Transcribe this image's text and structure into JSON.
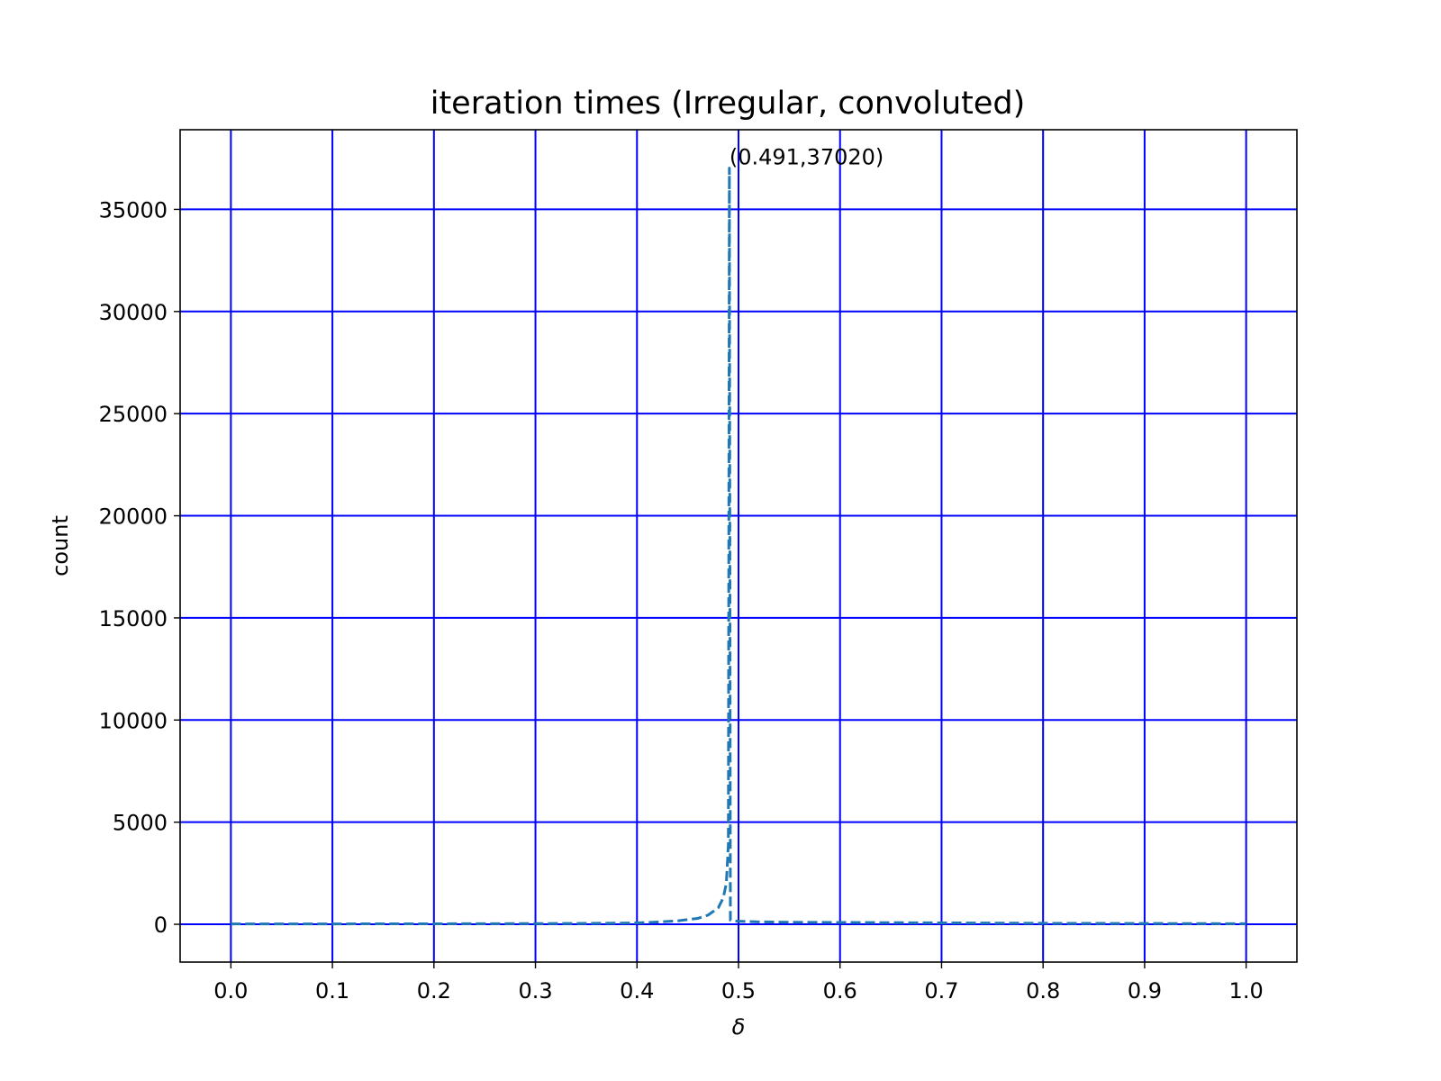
{
  "chart_data": {
    "type": "line",
    "title": "iteration times (Irregular, convoluted)",
    "xlabel": "δ",
    "ylabel": "count",
    "xlim": [
      -0.05,
      1.05
    ],
    "ylim": [
      -1850,
      38900
    ],
    "xticks": [
      0.0,
      0.1,
      0.2,
      0.3,
      0.4,
      0.5,
      0.6,
      0.7,
      0.8,
      0.9,
      1.0
    ],
    "xtick_labels": [
      "0.0",
      "0.1",
      "0.2",
      "0.3",
      "0.4",
      "0.5",
      "0.6",
      "0.7",
      "0.8",
      "0.9",
      "1.0"
    ],
    "yticks": [
      0,
      5000,
      10000,
      15000,
      20000,
      25000,
      30000,
      35000
    ],
    "ytick_labels": [
      "0",
      "5000",
      "10000",
      "15000",
      "20000",
      "25000",
      "30000",
      "35000"
    ],
    "grid": true,
    "grid_color": "#0000ff",
    "line_color": "#1f77b4",
    "line_style": "dashed",
    "series": [
      {
        "x": [
          0.0,
          0.05,
          0.1,
          0.15,
          0.2,
          0.25,
          0.3,
          0.35,
          0.38,
          0.4,
          0.42,
          0.44,
          0.46,
          0.47,
          0.48,
          0.485,
          0.488,
          0.49,
          0.491,
          0.492,
          0.493,
          0.495,
          0.5,
          0.52,
          0.55,
          0.6,
          0.65,
          0.7,
          0.75,
          0.8,
          0.85,
          0.9,
          0.95,
          1.0
        ],
        "y": [
          20,
          20,
          20,
          25,
          25,
          30,
          35,
          45,
          55,
          70,
          110,
          170,
          290,
          450,
          800,
          1300,
          2000,
          3900,
          37020,
          200,
          180,
          170,
          150,
          120,
          100,
          90,
          80,
          70,
          60,
          50,
          45,
          40,
          35,
          30
        ]
      }
    ],
    "annotation": {
      "text": "(0.491,37020)",
      "x": 0.491,
      "y": 37020
    }
  }
}
